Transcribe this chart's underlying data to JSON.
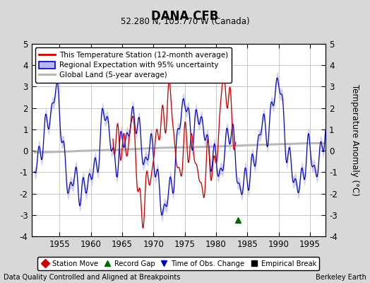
{
  "title": "DANA CFB",
  "subtitle": "52.280 N, 105.770 W (Canada)",
  "ylabel": "Temperature Anomaly (°C)",
  "xlabel_bottom_left": "Data Quality Controlled and Aligned at Breakpoints",
  "xlabel_bottom_right": "Berkeley Earth",
  "ylim": [
    -4,
    5
  ],
  "xlim": [
    1950.5,
    1997.5
  ],
  "yticks": [
    -4,
    -3,
    -2,
    -1,
    0,
    1,
    2,
    3,
    4,
    5
  ],
  "xticks": [
    1955,
    1960,
    1965,
    1970,
    1975,
    1980,
    1985,
    1990,
    1995
  ],
  "bg_color": "#d8d8d8",
  "plot_bg_color": "#ffffff",
  "grid_color": "#c0c0c0",
  "red_color": "#cc0000",
  "blue_color": "#0000bb",
  "blue_fill_color": "#b8b8ee",
  "gray_color": "#b8b8b8",
  "legend_items": [
    "This Temperature Station (12-month average)",
    "Regional Expectation with 95% uncertainty",
    "Global Land (5-year average)"
  ],
  "marker_legend": [
    {
      "label": "Station Move",
      "color": "#cc0000",
      "marker": "D"
    },
    {
      "label": "Record Gap",
      "color": "#006600",
      "marker": "^"
    },
    {
      "label": "Time of Obs. Change",
      "color": "#0000bb",
      "marker": "v"
    },
    {
      "label": "Empirical Break",
      "color": "#000000",
      "marker": "s"
    }
  ],
  "green_triangle_x": 1983.5,
  "green_triangle_y": -3.25
}
